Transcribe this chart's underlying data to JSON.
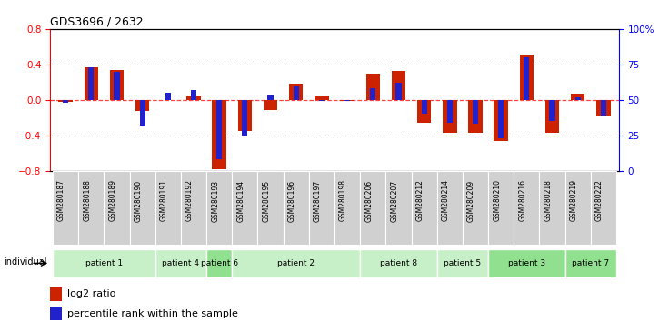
{
  "title": "GDS3696 / 2632",
  "samples": [
    "GSM280187",
    "GSM280188",
    "GSM280189",
    "GSM280190",
    "GSM280191",
    "GSM280192",
    "GSM280193",
    "GSM280194",
    "GSM280195",
    "GSM280196",
    "GSM280197",
    "GSM280198",
    "GSM280206",
    "GSM280207",
    "GSM280212",
    "GSM280214",
    "GSM280209",
    "GSM280210",
    "GSM280216",
    "GSM280218",
    "GSM280219",
    "GSM280222"
  ],
  "log2_ratio": [
    -0.02,
    0.37,
    0.34,
    -0.13,
    0.0,
    0.04,
    -0.78,
    -0.35,
    -0.12,
    0.18,
    0.04,
    -0.01,
    0.3,
    0.33,
    -0.26,
    -0.37,
    -0.37,
    -0.46,
    0.51,
    -0.37,
    0.07,
    -0.18
  ],
  "percentile": [
    48,
    73,
    70,
    32,
    55,
    57,
    8,
    25,
    54,
    60,
    49,
    49,
    58,
    62,
    40,
    34,
    33,
    23,
    80,
    35,
    52,
    38
  ],
  "patients": [
    {
      "label": "patient 1",
      "start": 0,
      "end": 4,
      "color": "#c8f0c8"
    },
    {
      "label": "patient 4",
      "start": 4,
      "end": 6,
      "color": "#c8f0c8"
    },
    {
      "label": "patient 6",
      "start": 6,
      "end": 7,
      "color": "#90e090"
    },
    {
      "label": "patient 2",
      "start": 7,
      "end": 12,
      "color": "#c8f0c8"
    },
    {
      "label": "patient 8",
      "start": 12,
      "end": 15,
      "color": "#c8f0c8"
    },
    {
      "label": "patient 5",
      "start": 15,
      "end": 17,
      "color": "#c8f0c8"
    },
    {
      "label": "patient 3",
      "start": 17,
      "end": 20,
      "color": "#90e090"
    },
    {
      "label": "patient 7",
      "start": 20,
      "end": 22,
      "color": "#90e090"
    }
  ],
  "ylim_left": [
    -0.8,
    0.8
  ],
  "ylim_right": [
    0,
    100
  ],
  "yticks_left": [
    -0.8,
    -0.4,
    0.0,
    0.4,
    0.8
  ],
  "yticks_right": [
    0,
    25,
    50,
    75,
    100
  ],
  "hline_color": "#ff4444",
  "bar_color_red": "#cc2200",
  "bar_color_blue": "#2222cc",
  "dotted_line_color": "#555555",
  "bg_color": "#ffffff",
  "sample_bg_color": "#c8c8c8",
  "legend_red_label": "log2 ratio",
  "legend_blue_label": "percentile rank within the sample"
}
